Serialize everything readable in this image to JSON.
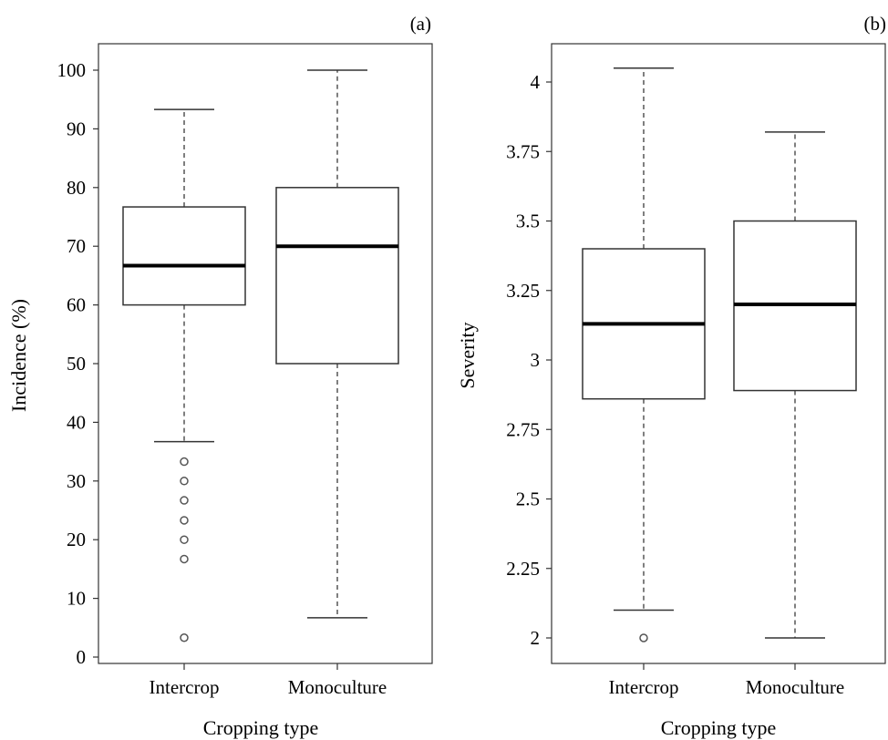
{
  "chart_data": [
    {
      "type": "boxplot",
      "panel_label": "(a)",
      "xlabel": "Cropping type",
      "ylabel": "Incidence (%)",
      "categories": [
        "Intercrop",
        "Monoculture"
      ],
      "ylim": [
        0,
        100
      ],
      "yticks": [
        0,
        10,
        20,
        30,
        40,
        50,
        60,
        70,
        80,
        90,
        100
      ],
      "ytick_labels": [
        "0",
        "10",
        "20",
        "30",
        "40",
        "50",
        "60",
        "70",
        "80",
        "90",
        "100"
      ],
      "boxes": [
        {
          "category": "Intercrop",
          "whisker_low": 36.7,
          "q1": 60,
          "median": 66.7,
          "q3": 76.7,
          "whisker_high": 93.3,
          "outliers": [
            33.3,
            30,
            26.7,
            23.3,
            20,
            16.7,
            3.3
          ]
        },
        {
          "category": "Monoculture",
          "whisker_low": 6.7,
          "q1": 50,
          "median": 70,
          "q3": 80,
          "whisker_high": 100,
          "outliers": []
        }
      ],
      "grid": false,
      "legend": "none"
    },
    {
      "type": "boxplot",
      "panel_label": "(b)",
      "xlabel": "Cropping type",
      "ylabel": "Severity",
      "categories": [
        "Intercrop",
        "Monoculture"
      ],
      "ylim": [
        2,
        4.05
      ],
      "yticks": [
        2,
        2.25,
        2.5,
        2.75,
        3,
        3.25,
        3.5,
        3.75,
        4
      ],
      "ytick_labels": [
        "2",
        "2.25",
        "2.5",
        "2.75",
        "3",
        "3.25",
        "3.5",
        "3.75",
        "4"
      ],
      "boxes": [
        {
          "category": "Intercrop",
          "whisker_low": 2.1,
          "q1": 2.86,
          "median": 3.13,
          "q3": 3.4,
          "whisker_high": 4.05,
          "outliers": [
            2.0
          ]
        },
        {
          "category": "Monoculture",
          "whisker_low": 2.0,
          "q1": 2.89,
          "median": 3.2,
          "q3": 3.5,
          "whisker_high": 3.82,
          "outliers": []
        }
      ],
      "grid": false,
      "legend": "none"
    }
  ]
}
